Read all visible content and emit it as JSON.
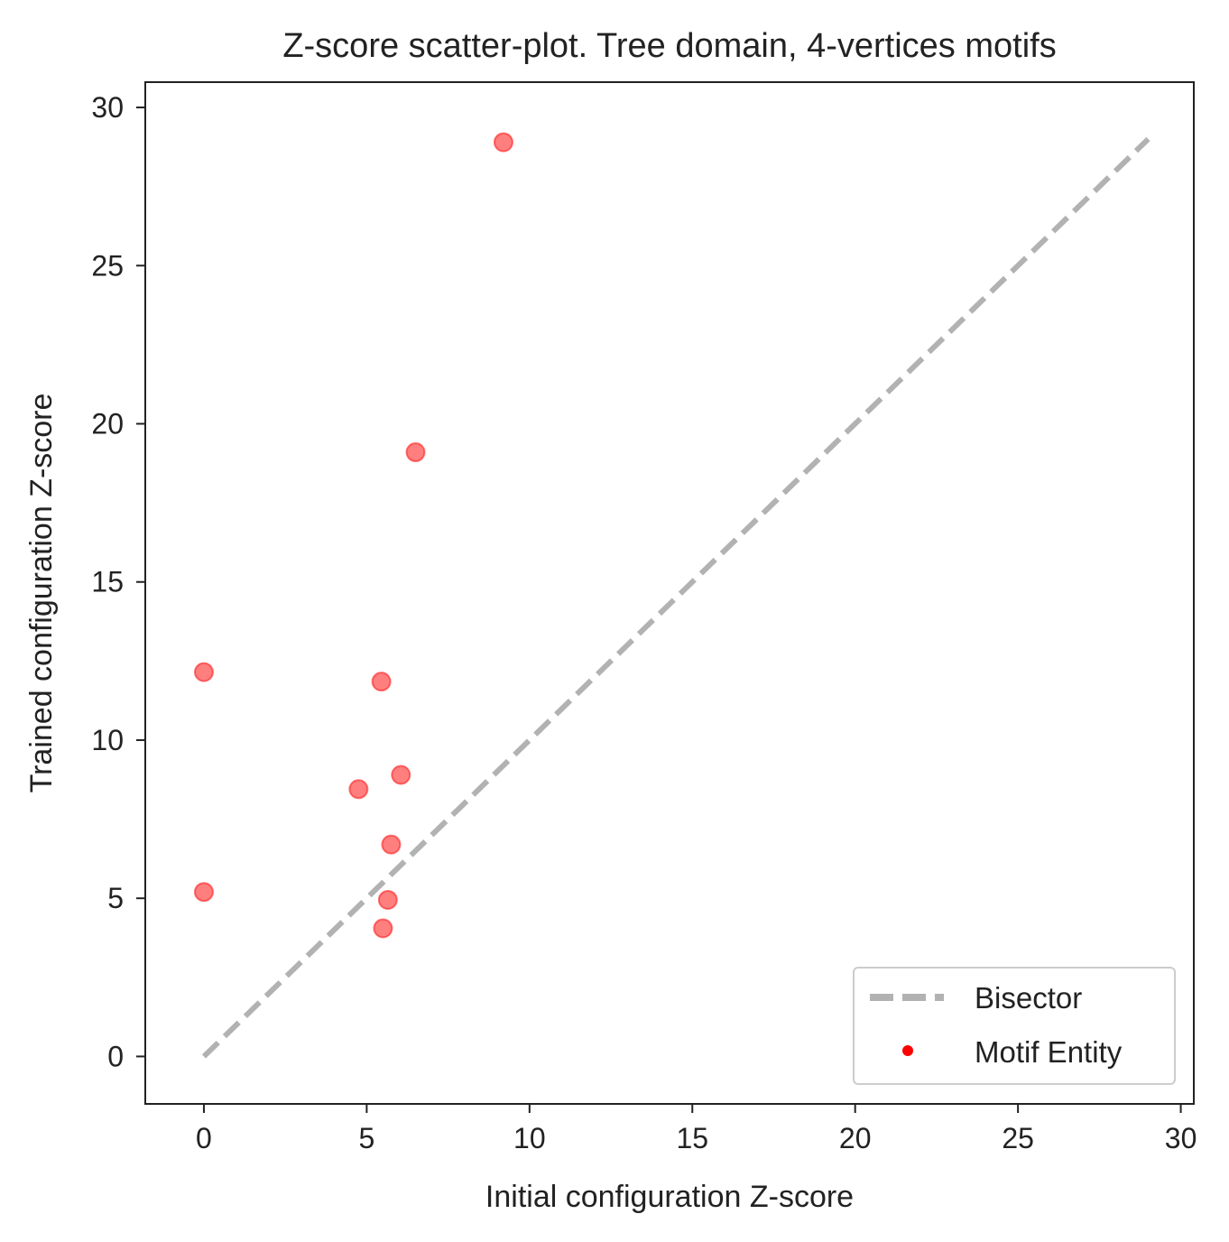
{
  "chart_data": {
    "type": "scatter",
    "title": "Z-score scatter-plot. Tree domain, 4-vertices motifs",
    "xlabel": "Initial configuration Z-score",
    "ylabel": "Trained configuration Z-score",
    "xlim": [
      -1.8,
      30.4
    ],
    "ylim": [
      -1.5,
      30.8
    ],
    "xticks": [
      0,
      5,
      10,
      15,
      20,
      25,
      30
    ],
    "yticks": [
      0,
      5,
      10,
      15,
      20,
      25,
      30
    ],
    "xtick_labels": [
      "0",
      "5",
      "10",
      "15",
      "20",
      "25",
      "30"
    ],
    "ytick_labels": [
      "0",
      "5",
      "10",
      "15",
      "20",
      "25",
      "30"
    ],
    "grid": false,
    "legend": {
      "placement": "lower-right",
      "entries": [
        {
          "label": "Bisector",
          "kind": "dashed-line",
          "color": "#b2b2b2"
        },
        {
          "label": "Motif Entity",
          "kind": "marker",
          "color": "#ff0000"
        }
      ]
    },
    "series": [
      {
        "name": "Bisector",
        "kind": "line",
        "style": "dashed",
        "color": "#b2b2b2",
        "x": [
          0,
          29
        ],
        "y": [
          0,
          29
        ]
      },
      {
        "name": "Motif Entity",
        "kind": "scatter",
        "color": "#ff0000",
        "points": [
          {
            "x": 9.2,
            "y": 28.9
          },
          {
            "x": 6.5,
            "y": 19.1
          },
          {
            "x": 0.0,
            "y": 12.15
          },
          {
            "x": 5.45,
            "y": 11.85
          },
          {
            "x": 6.05,
            "y": 8.9
          },
          {
            "x": 4.75,
            "y": 8.45
          },
          {
            "x": 5.75,
            "y": 6.7
          },
          {
            "x": 0.0,
            "y": 5.2
          },
          {
            "x": 5.65,
            "y": 4.95
          },
          {
            "x": 5.5,
            "y": 4.05
          }
        ]
      }
    ]
  }
}
